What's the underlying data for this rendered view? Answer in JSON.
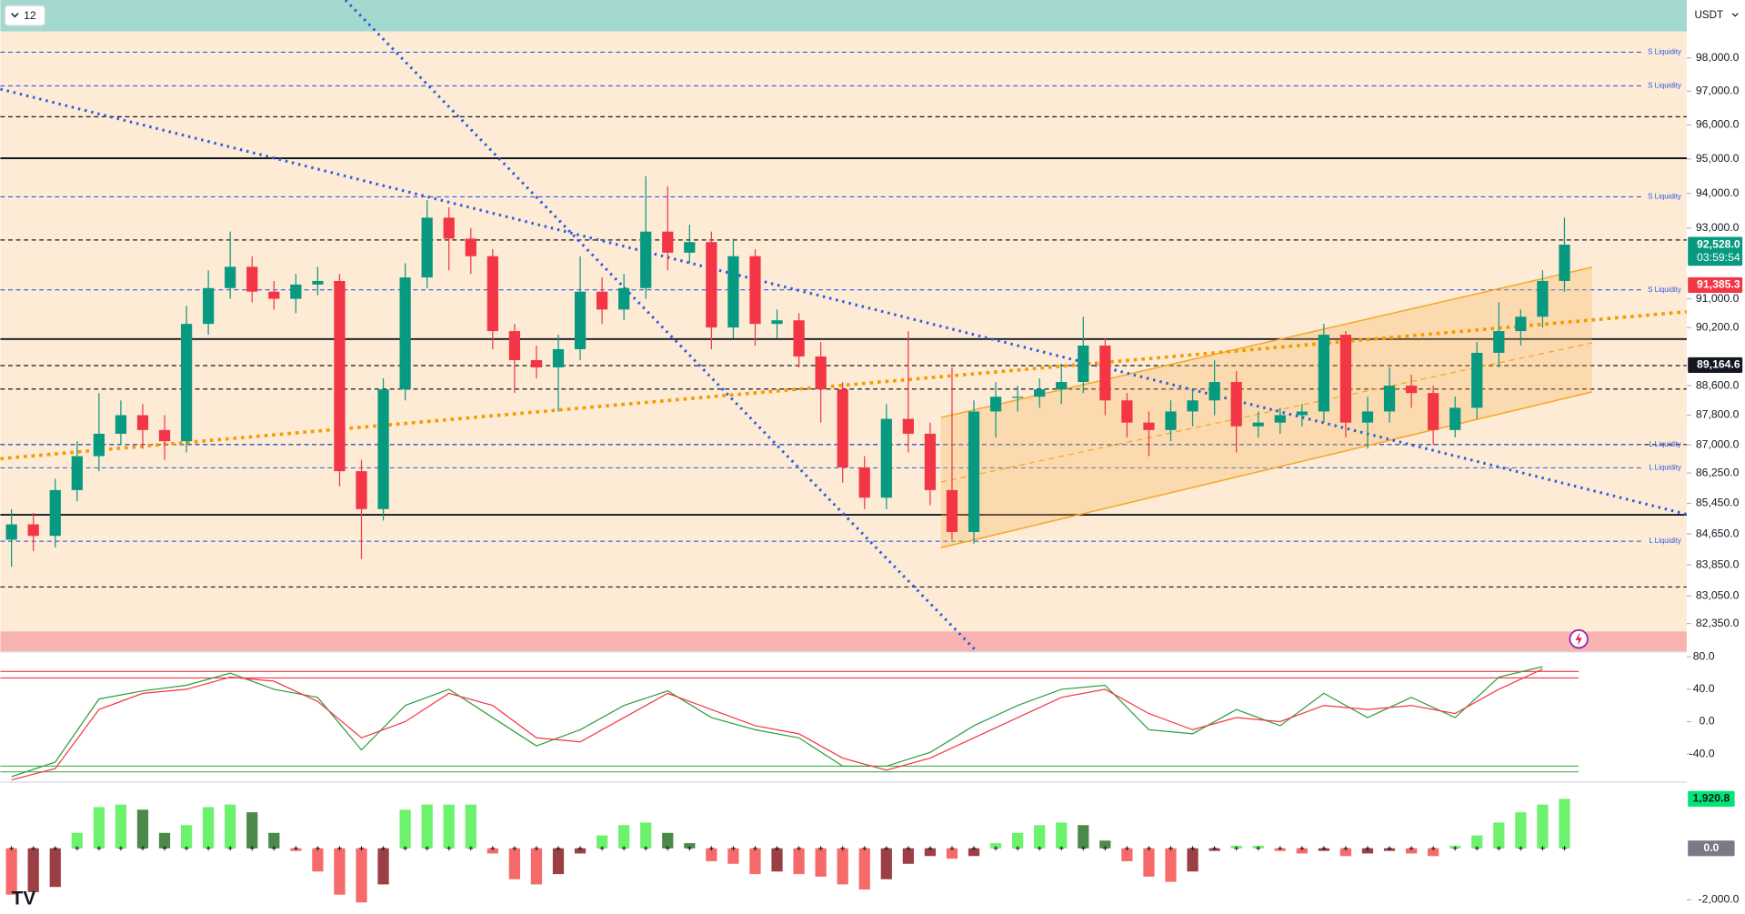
{
  "chart_data": {
    "type": "candlestick",
    "interval": "12",
    "currency": "USDT",
    "price": {
      "log": true,
      "ylim": [
        81650,
        99760
      ],
      "yticks": [
        {
          "value": 98000,
          "label": "98,000.0"
        },
        {
          "value": 97000,
          "label": "97,000.0"
        },
        {
          "value": 96000,
          "label": "96,000.0"
        },
        {
          "value": 95000,
          "label": "95,000.0"
        },
        {
          "value": 94000,
          "label": "94,000.0"
        },
        {
          "value": 93000,
          "label": "93,000.0"
        },
        {
          "value": 91000,
          "label": "91,000.0"
        },
        {
          "value": 90200,
          "label": "90,200.0"
        },
        {
          "value": 88600,
          "label": "88,600.0"
        },
        {
          "value": 87800,
          "label": "87,800.0"
        },
        {
          "value": 87000,
          "label": "87,000.0"
        },
        {
          "value": 86250,
          "label": "86,250.0"
        },
        {
          "value": 85450,
          "label": "85,450.0"
        },
        {
          "value": 84650,
          "label": "84,650.0"
        },
        {
          "value": 83850,
          "label": "83,850.0"
        },
        {
          "value": 83050,
          "label": "83,050.0"
        },
        {
          "value": 82350,
          "label": "82,350.0"
        }
      ],
      "zones": [
        {
          "from": 98800,
          "to": 99760,
          "color": "#a3d9cf"
        },
        {
          "from": 82150,
          "to": 98800,
          "color": "#fdebd5"
        },
        {
          "from": 81650,
          "to": 82150,
          "color": "#f8b4b0"
        }
      ],
      "levels": [
        {
          "value": 96240,
          "style": "dashed"
        },
        {
          "value": 95020,
          "style": "solid"
        },
        {
          "value": 92660,
          "style": "dashed"
        },
        {
          "value": 89880,
          "style": "solid"
        },
        {
          "value": 89150,
          "style": "dashed"
        },
        {
          "value": 88510,
          "style": "dashed"
        },
        {
          "value": 87010,
          "style": "dashed"
        },
        {
          "value": 85150,
          "style": "solid"
        },
        {
          "value": 83280,
          "style": "dashed"
        }
      ],
      "liquidity": [
        {
          "value": 98170,
          "label": "S Liquidity"
        },
        {
          "value": 97160,
          "label": "S Liquidity"
        },
        {
          "value": 93900,
          "label": "S Liquidity"
        },
        {
          "value": 91250,
          "label": "S Liquidity"
        },
        {
          "value": 87010,
          "label": "L Liquidity"
        },
        {
          "value": 86390,
          "label": "L Liquidity"
        },
        {
          "value": 84460,
          "label": "L Liquidity"
        }
      ],
      "price_labels": [
        {
          "value": 92528,
          "label": "92,528.0",
          "countdown": "03:59:54",
          "color": "#089981"
        },
        {
          "value": 91385.3,
          "label": "91,385.3",
          "color": "#f23645"
        },
        {
          "value": 89164.6,
          "label": "89,164.6",
          "color": "#131722"
        }
      ],
      "up_color": "#089981",
      "down_color": "#f23645",
      "candles": {
        "open": [
          84500,
          84900,
          84600,
          85800,
          86700,
          87300,
          87800,
          87400,
          87100,
          90300,
          91300,
          91900,
          91200,
          91000,
          91400,
          91500,
          86300,
          85300,
          88500,
          91600,
          93300,
          92700,
          92200,
          90100,
          89300,
          89100,
          89600,
          91200,
          90700,
          91300,
          92900,
          92300,
          92600,
          90200,
          92200,
          90300,
          90400,
          89400,
          88500,
          86400,
          85600,
          87700,
          87300,
          85800,
          84700,
          87900,
          88300,
          88300,
          88500,
          88700,
          89700,
          88200,
          87600,
          87400,
          87900,
          88200,
          88700,
          87500,
          87600,
          87800,
          87900,
          90000,
          87600,
          87900,
          88600,
          88400,
          87400,
          88000,
          89500,
          90100,
          90500,
          91500
        ],
        "high": [
          85300,
          85200,
          86100,
          87100,
          88400,
          88200,
          88100,
          87800,
          90800,
          91800,
          92900,
          92200,
          91500,
          91700,
          91900,
          91700,
          86600,
          88800,
          92000,
          93800,
          93600,
          93000,
          92400,
          90300,
          89700,
          90000,
          92200,
          91600,
          91700,
          94500,
          94200,
          93100,
          92900,
          92700,
          92400,
          90700,
          90600,
          89800,
          88700,
          86700,
          88100,
          90100,
          87600,
          89100,
          88200,
          88700,
          88600,
          88800,
          89200,
          90500,
          89900,
          88400,
          87900,
          88200,
          88500,
          89300,
          89000,
          87900,
          88000,
          88100,
          90300,
          90100,
          88300,
          89100,
          88900,
          88600,
          88300,
          89800,
          90900,
          90700,
          91800,
          93300
        ],
        "low": [
          83800,
          84200,
          84300,
          85500,
          86300,
          87000,
          86900,
          86600,
          86800,
          90000,
          91000,
          90900,
          90700,
          90600,
          91100,
          85900,
          84000,
          85000,
          88200,
          91300,
          91800,
          91700,
          89600,
          88400,
          88800,
          87900,
          89300,
          90300,
          90400,
          91000,
          91800,
          92000,
          89600,
          89900,
          89700,
          89900,
          89100,
          87600,
          86000,
          85300,
          85300,
          86800,
          85400,
          84500,
          84400,
          87200,
          87900,
          88000,
          88100,
          88400,
          87800,
          87200,
          86700,
          87100,
          87500,
          87800,
          86800,
          87200,
          87300,
          87500,
          87600,
          87200,
          86900,
          87600,
          88000,
          87000,
          87200,
          87700,
          89100,
          89700,
          90200,
          91200
        ],
        "close": [
          84900,
          84600,
          85800,
          86700,
          87300,
          87800,
          87400,
          87100,
          90300,
          91300,
          91900,
          91200,
          91000,
          91400,
          91500,
          86300,
          85300,
          88500,
          91600,
          93300,
          92700,
          92200,
          90100,
          89300,
          89100,
          89600,
          91200,
          90700,
          91300,
          92900,
          92300,
          92600,
          90200,
          92200,
          90300,
          90400,
          89400,
          88500,
          86400,
          85600,
          87700,
          87300,
          85800,
          84700,
          87900,
          88300,
          88300,
          88500,
          88700,
          89700,
          88200,
          87600,
          87400,
          87900,
          88200,
          88700,
          87500,
          87600,
          87800,
          87900,
          90000,
          87600,
          87900,
          88600,
          88400,
          87400,
          88000,
          89500,
          90100,
          90500,
          91500,
          92528
        ]
      }
    },
    "oscillator": {
      "ylim": [
        -74,
        87
      ],
      "yticks": [
        {
          "value": 80,
          "label": "80.0"
        },
        {
          "value": 40,
          "label": "40.0"
        },
        {
          "value": 0,
          "label": "0.0"
        },
        {
          "value": -40,
          "label": "-40.0"
        }
      ],
      "upper_levels": [
        62,
        54
      ],
      "upper_color": "#f23645",
      "lower_levels": [
        -55,
        -62
      ],
      "lower_color": "#4caf50",
      "series": [
        {
          "name": "K",
          "color": "#2e9e3e",
          "values": [
            -68,
            -50,
            28,
            38,
            45,
            60,
            40,
            30,
            -35,
            20,
            40,
            5,
            -30,
            -10,
            20,
            38,
            5,
            -10,
            -20,
            -55,
            -55,
            -38,
            -5,
            20,
            40,
            45,
            -10,
            -15,
            15,
            -5,
            35,
            5,
            30,
            5,
            55,
            68
          ]
        },
        {
          "name": "D",
          "color": "#f23645",
          "values": [
            -72,
            -58,
            15,
            35,
            40,
            55,
            50,
            25,
            -20,
            0,
            35,
            20,
            -20,
            -25,
            5,
            35,
            15,
            -5,
            -15,
            -45,
            -60,
            -45,
            -20,
            5,
            30,
            40,
            10,
            -10,
            5,
            0,
            20,
            15,
            20,
            10,
            40,
            65
          ]
        }
      ]
    },
    "histogram": {
      "ylim": [
        -2550,
        2550
      ],
      "yticks": [
        {
          "value": -2000,
          "label": "-2,000.0"
        }
      ],
      "labels": [
        {
          "value": 1920.8,
          "label": "1,920.8",
          "color": "#00e676"
        },
        {
          "value": 0,
          "label": "0.0",
          "color": "#787b86"
        }
      ],
      "colors": {
        "pos_up": "#6cf26c",
        "pos_down": "#4b8a4b",
        "neg_down": "#f66a6a",
        "neg_up": "#9b3f45"
      },
      "values": [
        -1800,
        -1700,
        -1500,
        600,
        1600,
        1700,
        1500,
        600,
        900,
        1600,
        1700,
        1400,
        600,
        -100,
        -900,
        -1800,
        -2100,
        -1400,
        1500,
        1700,
        1700,
        1700,
        -200,
        -1200,
        -1400,
        -1000,
        -200,
        500,
        900,
        1000,
        600,
        200,
        -500,
        -600,
        -1000,
        -900,
        -1000,
        -1100,
        -1400,
        -1600,
        -1200,
        -600,
        -300,
        -400,
        -300,
        200,
        600,
        900,
        1000,
        900,
        300,
        -500,
        -1100,
        -1300,
        -900,
        -100,
        100,
        100,
        -100,
        -200,
        -100,
        -300,
        -200,
        -100,
        -200,
        -300,
        100,
        500,
        1000,
        1400,
        1700,
        1920.8
      ]
    }
  }
}
